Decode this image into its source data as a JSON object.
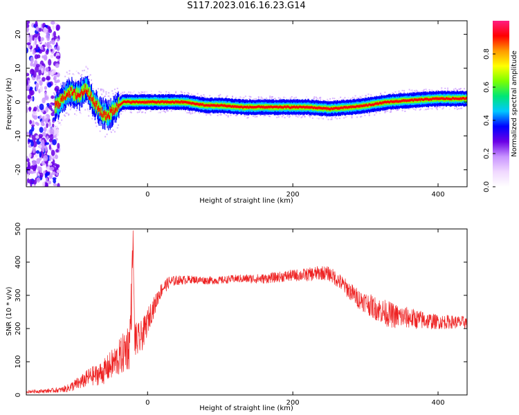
{
  "title": "S117.2023.016.16.23.G14",
  "colors": {
    "snr_line": "#ee2222",
    "track_core": "#e8173b",
    "colormap": [
      "#ffffff",
      "#f0d8ff",
      "#c894ff",
      "#6a00e6",
      "#0000ff",
      "#00c8ff",
      "#00e676",
      "#7cff00",
      "#ffff00",
      "#ff9a00",
      "#ff0000",
      "#ff1e82"
    ]
  },
  "chart_data": [
    {
      "type": "heatmap",
      "xlabel": "Height of straight line (km)",
      "ylabel": "Frequency (Hz)",
      "xlim": [
        -167,
        440
      ],
      "ylim": [
        -25,
        24
      ],
      "x_ticks": [
        0,
        200,
        400
      ],
      "y_ticks": [
        -20,
        -10,
        0,
        10,
        20
      ],
      "colorbar": {
        "label": "Normalized spectral amplitude",
        "range": [
          0.0,
          1.0
        ],
        "ticks": [
          "0.0",
          "0.2",
          "0.4",
          "0.6",
          "0.8"
        ]
      },
      "ridge_frequency_hz": {
        "x": [
          -125,
          -110,
          -95,
          -85,
          -75,
          -65,
          -55,
          -45,
          -35,
          -25,
          -10,
          0,
          50,
          80,
          100,
          130,
          160,
          200,
          220,
          250,
          280,
          300,
          330,
          360,
          400,
          440
        ],
        "y": [
          -1,
          3,
          2,
          4,
          0,
          -3,
          -4,
          -2,
          0,
          0,
          0,
          0,
          0,
          -1,
          -1,
          -1.5,
          -1.5,
          -1.5,
          -1.5,
          -2,
          -1.5,
          -1,
          0,
          0.5,
          1,
          1
        ]
      }
    },
    {
      "type": "line",
      "xlabel": "Height of straight line (km)",
      "ylabel": "SNR (10 * v/v)",
      "xlim": [
        -167,
        440
      ],
      "ylim": [
        0,
        500
      ],
      "x_ticks": [
        0,
        200,
        400
      ],
      "y_ticks": [
        0,
        100,
        200,
        300,
        400,
        500
      ],
      "series": [
        {
          "x": [
            -167,
            -140,
            -120,
            -110,
            -100,
            -90,
            -80,
            -70,
            -60,
            -50,
            -40,
            -35,
            -30,
            -25,
            -22,
            -20,
            -18,
            -15,
            -10,
            -5,
            0,
            5,
            10,
            15,
            20,
            30,
            40,
            60,
            80,
            100,
            120,
            140,
            160,
            180,
            200,
            220,
            230,
            240,
            250,
            260,
            270,
            280,
            290,
            300,
            310,
            320,
            330,
            340,
            350,
            360,
            370,
            380,
            390,
            400,
            410,
            420,
            430,
            440
          ],
          "y": [
            10,
            12,
            15,
            20,
            30,
            40,
            55,
            60,
            70,
            90,
            110,
            120,
            140,
            150,
            300,
            480,
            180,
            160,
            170,
            190,
            220,
            250,
            270,
            300,
            320,
            340,
            345,
            348,
            345,
            345,
            350,
            350,
            350,
            355,
            360,
            362,
            365,
            368,
            365,
            350,
            330,
            310,
            290,
            280,
            265,
            255,
            245,
            238,
            235,
            232,
            228,
            225,
            222,
            220,
            220,
            220,
            218,
            220
          ],
          "noise": [
            5,
            6,
            8,
            12,
            18,
            22,
            28,
            32,
            38,
            45,
            55,
            60,
            70,
            75,
            90,
            20,
            60,
            55,
            50,
            45,
            40,
            35,
            30,
            25,
            22,
            18,
            15,
            12,
            12,
            12,
            12,
            14,
            15,
            16,
            18,
            20,
            22,
            22,
            22,
            24,
            26,
            28,
            30,
            32,
            35,
            38,
            40,
            38,
            35,
            32,
            30,
            28,
            25,
            22,
            22,
            20,
            20,
            20
          ]
        }
      ]
    }
  ]
}
